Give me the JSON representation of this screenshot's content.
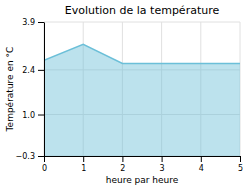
{
  "chart_data": {
    "type": "area",
    "title": "Evolution de la température",
    "xlabel": "heure par heure",
    "ylabel": "Température en °C",
    "x": [
      0,
      1,
      2,
      3,
      4,
      5
    ],
    "values": [
      2.7,
      3.2,
      2.6,
      2.6,
      2.6,
      2.6
    ],
    "color": "#6bbfd8",
    "xlim": [
      0,
      5
    ],
    "xticks": [
      0,
      1,
      2,
      3,
      4,
      5
    ],
    "ylim": [
      -0.3,
      3.9
    ],
    "yticks": [
      {
        "value": -0.3,
        "label": "−0.3"
      },
      {
        "value": 1.0,
        "label": "1.0"
      },
      2.4,
      3.9
    ],
    "grid": true
  }
}
